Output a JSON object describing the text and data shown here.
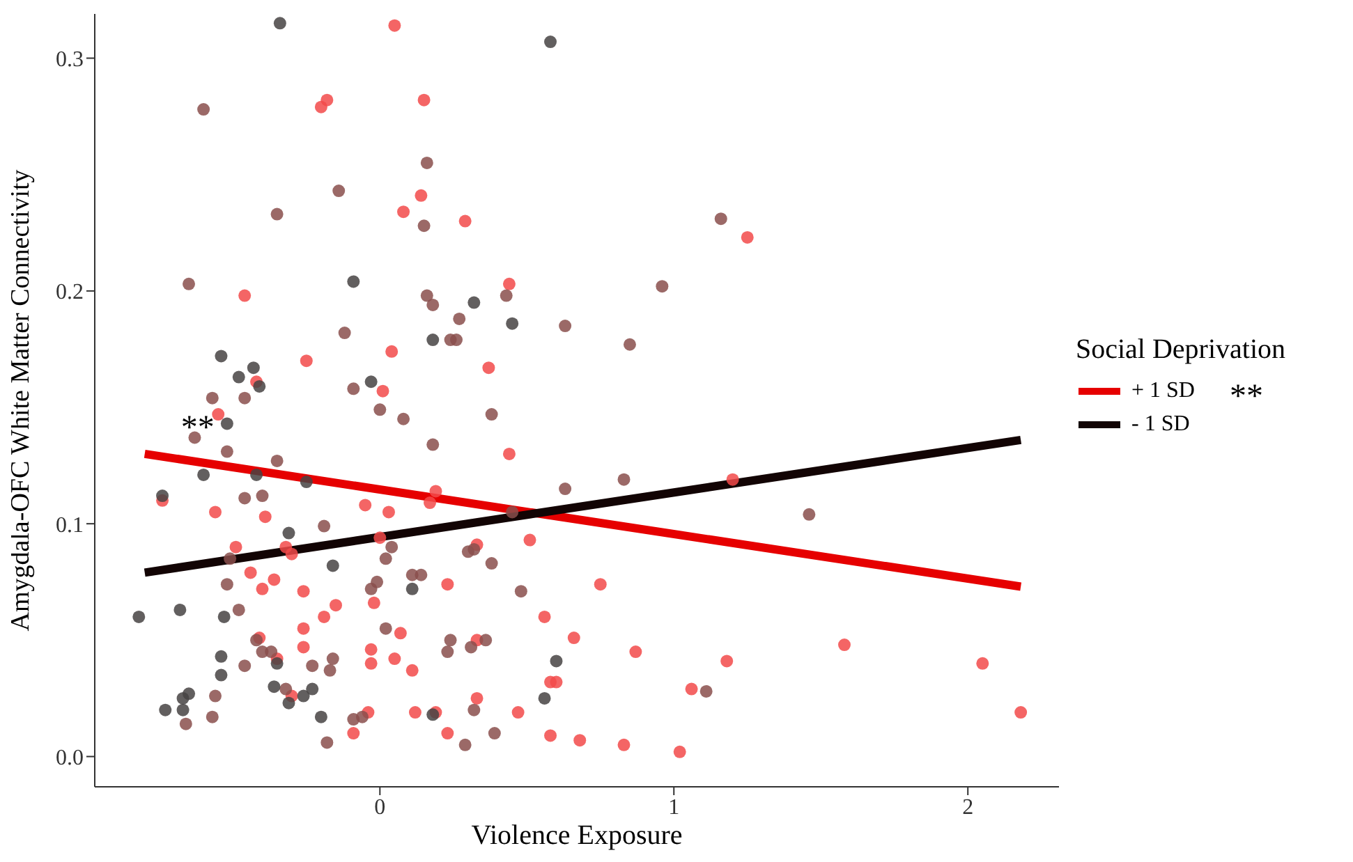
{
  "chart_data": {
    "type": "scatter",
    "xlabel": "Violence Exposure",
    "ylabel": "Amygdala-OFC White Matter Connectivity",
    "legend_title": "Social Deprivation",
    "legend": "right",
    "grid": false,
    "marker": "circle",
    "line_style": "solid",
    "xlim": [
      -0.97,
      2.31
    ],
    "xticks": [
      0,
      1,
      2
    ],
    "ylim": [
      -0.013,
      0.319
    ],
    "yticks": [
      {
        "value": 0,
        "label": "0.0"
      },
      {
        "value": 0.1,
        "label": "0.1"
      },
      {
        "value": 0.2,
        "label": "0.2"
      },
      {
        "value": 0.3,
        "label": "0.3"
      }
    ],
    "annotations": [
      {
        "text": "**",
        "x": -0.62,
        "y": 0.142
      },
      "**"
    ],
    "series": [
      {
        "color": "#f24a4a",
        "x": [
          0.05,
          -0.18,
          -0.2,
          0.15,
          0.14,
          0.08,
          -0.46,
          -0.25,
          0.04,
          -0.42,
          0.01,
          0.29,
          1.25,
          0.44,
          0.37,
          -0.55,
          -0.56,
          -0.74,
          -0.39,
          -0.05,
          0.03,
          -0.49,
          -0.32,
          -0.3,
          0.0,
          -0.44,
          -0.36,
          -0.4,
          -0.26,
          -0.02,
          -0.15,
          -0.19,
          -0.26,
          0.07,
          -0.41,
          -0.26,
          -0.35,
          -0.03,
          -0.03,
          0.05,
          0.11,
          -0.3,
          -0.04,
          -0.09,
          0.12,
          0.44,
          1.2,
          0.19,
          0.17,
          0.33,
          0.51,
          0.23,
          0.75,
          0.56,
          0.66,
          0.87,
          1.18,
          0.33,
          0.58,
          0.6,
          1.06,
          0.33,
          0.19,
          0.47,
          0.23,
          0.58,
          0.68,
          0.83,
          1.02,
          1.58,
          2.05,
          2.18
        ],
        "values": [
          0.314,
          0.282,
          0.279,
          0.282,
          0.241,
          0.234,
          0.198,
          0.17,
          0.174,
          0.161,
          0.157,
          0.23,
          0.223,
          0.203,
          0.167,
          0.147,
          0.105,
          0.11,
          0.103,
          0.108,
          0.105,
          0.09,
          0.09,
          0.087,
          0.094,
          0.079,
          0.076,
          0.072,
          0.071,
          0.066,
          0.065,
          0.06,
          0.055,
          0.053,
          0.051,
          0.047,
          0.042,
          0.046,
          0.04,
          0.042,
          0.037,
          0.026,
          0.019,
          0.01,
          0.019,
          0.13,
          0.119,
          0.114,
          0.109,
          0.091,
          0.093,
          0.074,
          0.074,
          0.06,
          0.051,
          0.045,
          0.041,
          0.05,
          0.032,
          0.032,
          0.029,
          0.025,
          0.019,
          0.019,
          0.01,
          0.009,
          0.007,
          0.005,
          0.002,
          0.048,
          0.04,
          0.019
        ]
      },
      {
        "color": "#8a4f4c",
        "x": [
          -0.6,
          0.16,
          -0.14,
          -0.35,
          0.15,
          -0.65,
          0.16,
          -0.12,
          -0.09,
          -0.57,
          -0.46,
          1.16,
          0.43,
          0.18,
          0.96,
          0.27,
          0.63,
          0.24,
          0.26,
          0.85,
          -0.63,
          0.0,
          0.08,
          -0.52,
          -0.35,
          -0.46,
          -0.4,
          -0.19,
          -0.51,
          0.04,
          0.02,
          -0.52,
          -0.01,
          -0.03,
          0.11,
          0.14,
          -0.48,
          0.02,
          -0.42,
          -0.4,
          -0.37,
          -0.16,
          -0.23,
          -0.17,
          -0.46,
          -0.32,
          -0.56,
          -0.66,
          -0.57,
          -0.18,
          -0.09,
          -0.06,
          0.38,
          0.18,
          0.83,
          0.63,
          0.45,
          0.3,
          0.32,
          0.38,
          0.48,
          0.24,
          0.23,
          0.36,
          0.31,
          1.11,
          0.32,
          0.39,
          0.29,
          1.46
        ],
        "values": [
          0.278,
          0.255,
          0.243,
          0.233,
          0.228,
          0.203,
          0.198,
          0.182,
          0.158,
          0.154,
          0.154,
          0.231,
          0.198,
          0.194,
          0.202,
          0.188,
          0.185,
          0.179,
          0.179,
          0.177,
          0.137,
          0.149,
          0.145,
          0.131,
          0.127,
          0.111,
          0.112,
          0.099,
          0.085,
          0.09,
          0.085,
          0.074,
          0.075,
          0.072,
          0.078,
          0.078,
          0.063,
          0.055,
          0.05,
          0.045,
          0.045,
          0.042,
          0.039,
          0.037,
          0.039,
          0.029,
          0.026,
          0.014,
          0.017,
          0.006,
          0.016,
          0.017,
          0.147,
          0.134,
          0.119,
          0.115,
          0.105,
          0.088,
          0.089,
          0.083,
          0.071,
          0.05,
          0.045,
          0.05,
          0.047,
          0.028,
          0.02,
          0.01,
          0.005,
          0.104
        ]
      },
      {
        "color": "#474343",
        "x": [
          -0.34,
          0.58,
          -0.09,
          -0.54,
          -0.43,
          -0.48,
          -0.41,
          -0.03,
          0.32,
          0.45,
          0.18,
          -0.52,
          -0.6,
          -0.42,
          -0.25,
          -0.74,
          -0.31,
          -0.16,
          0.11,
          -0.82,
          -0.68,
          -0.53,
          -0.35,
          -0.54,
          -0.54,
          -0.36,
          -0.26,
          -0.23,
          -0.65,
          -0.67,
          -0.73,
          -0.67,
          -0.31,
          -0.2,
          0.6,
          0.56,
          0.18
        ],
        "values": [
          0.315,
          0.307,
          0.204,
          0.172,
          0.167,
          0.163,
          0.159,
          0.161,
          0.195,
          0.186,
          0.179,
          0.143,
          0.121,
          0.121,
          0.118,
          0.112,
          0.096,
          0.082,
          0.072,
          0.06,
          0.063,
          0.06,
          0.04,
          0.043,
          0.035,
          0.03,
          0.026,
          0.029,
          0.027,
          0.025,
          0.02,
          0.02,
          0.023,
          0.017,
          0.041,
          0.025,
          0.018
        ]
      },
      {
        "type": "line",
        "marker": "none",
        "name": "+ 1 SD",
        "color": "#e60000",
        "x": [
          -0.8,
          2.18
        ],
        "values": [
          0.13,
          0.073
        ]
      },
      {
        "type": "line",
        "marker": "none",
        "name": "- 1 SD",
        "color": "#120404",
        "x": [
          -0.8,
          2.18
        ],
        "values": [
          0.079,
          0.136
        ]
      }
    ]
  }
}
